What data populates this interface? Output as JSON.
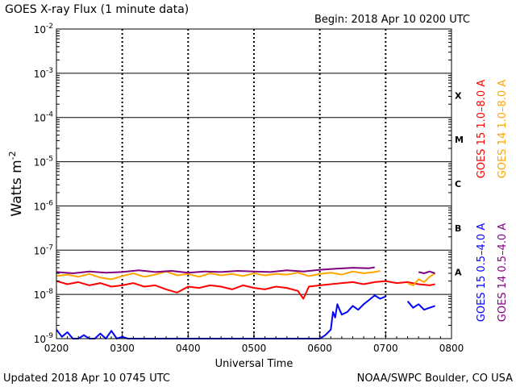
{
  "header": {
    "title": "GOES X-ray Flux (1 minute data)",
    "begin": "Begin: 2018 Apr 10 0200 UTC"
  },
  "footer": {
    "updated": "Updated 2018 Apr 10 0745 UTC",
    "credit": "NOAA/SWPC Boulder, CO USA"
  },
  "chart_data": {
    "type": "line",
    "xlabel": "Universal Time",
    "ylabel": "Watts m",
    "ylabel_superscript": "-2",
    "yscale": "log",
    "ylim": [
      1e-09,
      0.01
    ],
    "xlim": [
      "0200",
      "0800"
    ],
    "x_ticks": [
      "0200",
      "0300",
      "0400",
      "0500",
      "0600",
      "0700",
      "0800"
    ],
    "y_ticks": [
      {
        "value": 1e-09,
        "base": "10",
        "exp": "-9"
      },
      {
        "value": 1e-08,
        "base": "10",
        "exp": "-8"
      },
      {
        "value": 1e-07,
        "base": "10",
        "exp": "-7"
      },
      {
        "value": 1e-06,
        "base": "10",
        "exp": "-6"
      },
      {
        "value": 1e-05,
        "base": "10",
        "exp": "-5"
      },
      {
        "value": 0.0001,
        "base": "10",
        "exp": "-4"
      },
      {
        "value": 0.001,
        "base": "10",
        "exp": "-3"
      },
      {
        "value": 0.01,
        "base": "10",
        "exp": "-2"
      }
    ],
    "flare_classes": [
      {
        "label": "X",
        "value": 0.000316
      },
      {
        "label": "M",
        "value": 3.16e-05
      },
      {
        "label": "C",
        "value": 3.16e-06
      },
      {
        "label": "B",
        "value": 3.16e-07
      },
      {
        "label": "A",
        "value": 3.16e-08
      }
    ],
    "legend": [
      {
        "text": "GOES 15 1.0–8.0 A",
        "color": "#ff0000"
      },
      {
        "text": "GOES 14 1.0–8.0 A",
        "color": "#ffa500"
      },
      {
        "text": "GOES 15 0.5–4.0 A",
        "color": "#0000ff"
      },
      {
        "text": "GOES 14 0.5–4.0 A",
        "color": "#800080"
      }
    ],
    "series": [
      {
        "name": "GOES 15 1.0–8.0 A",
        "color": "#ff0000",
        "segments": [
          [
            [
              "02:00",
              2e-08
            ],
            [
              "02:10",
              1.7e-08
            ],
            [
              "02:20",
              1.9e-08
            ],
            [
              "02:30",
              1.6e-08
            ],
            [
              "02:40",
              1.8e-08
            ],
            [
              "02:50",
              1.5e-08
            ],
            [
              "03:00",
              1.6e-08
            ],
            [
              "03:10",
              1.8e-08
            ],
            [
              "03:20",
              1.5e-08
            ],
            [
              "03:30",
              1.6e-08
            ],
            [
              "03:40",
              1.3e-08
            ],
            [
              "03:50",
              1.1e-08
            ],
            [
              "04:00",
              1.5e-08
            ],
            [
              "04:10",
              1.4e-08
            ],
            [
              "04:20",
              1.6e-08
            ],
            [
              "04:30",
              1.5e-08
            ],
            [
              "04:40",
              1.3e-08
            ],
            [
              "04:50",
              1.6e-08
            ],
            [
              "05:00",
              1.4e-08
            ],
            [
              "05:10",
              1.3e-08
            ],
            [
              "05:20",
              1.5e-08
            ],
            [
              "05:30",
              1.4e-08
            ],
            [
              "05:40",
              1.2e-08
            ],
            [
              "05:45",
              8e-09
            ],
            [
              "05:50",
              1.5e-08
            ],
            [
              "06:00",
              1.6e-08
            ],
            [
              "06:10",
              1.7e-08
            ],
            [
              "06:20",
              1.8e-08
            ],
            [
              "06:30",
              1.9e-08
            ],
            [
              "06:40",
              1.7e-08
            ],
            [
              "06:50",
              1.9e-08
            ],
            [
              "07:00",
              2e-08
            ],
            [
              "07:10",
              1.8e-08
            ],
            [
              "07:20",
              1.9e-08
            ],
            [
              "07:30",
              1.7e-08
            ],
            [
              "07:40",
              1.6e-08
            ],
            [
              "07:45",
              1.7e-08
            ]
          ]
        ]
      },
      {
        "name": "GOES 14 1.0–8.0 A",
        "color": "#ffa500",
        "segments": [
          [
            [
              "02:00",
              2.6e-08
            ],
            [
              "02:10",
              2.8e-08
            ],
            [
              "02:20",
              2.5e-08
            ],
            [
              "02:30",
              2.9e-08
            ],
            [
              "02:40",
              2.4e-08
            ],
            [
              "02:50",
              2.2e-08
            ],
            [
              "03:00",
              2.6e-08
            ],
            [
              "03:10",
              3e-08
            ],
            [
              "03:20",
              2.5e-08
            ],
            [
              "03:30",
              2.8e-08
            ],
            [
              "03:40",
              3.3e-08
            ],
            [
              "03:50",
              2.7e-08
            ],
            [
              "04:00",
              2.9e-08
            ],
            [
              "04:10",
              2.5e-08
            ],
            [
              "04:20",
              3e-08
            ],
            [
              "04:30",
              2.7e-08
            ],
            [
              "04:40",
              2.9e-08
            ],
            [
              "04:50",
              2.6e-08
            ],
            [
              "05:00",
              3e-08
            ],
            [
              "05:10",
              2.7e-08
            ],
            [
              "05:20",
              2.9e-08
            ],
            [
              "05:30",
              2.8e-08
            ],
            [
              "05:40",
              3.1e-08
            ],
            [
              "05:50",
              2.6e-08
            ],
            [
              "06:00",
              2.9e-08
            ],
            [
              "06:10",
              3.1e-08
            ],
            [
              "06:20",
              2.8e-08
            ],
            [
              "06:30",
              3.3e-08
            ],
            [
              "06:40",
              3e-08
            ],
            [
              "06:50",
              3.2e-08
            ],
            [
              "06:55",
              3.4e-08
            ]
          ],
          [
            [
              "07:20",
              1.8e-08
            ],
            [
              "07:25",
              1.6e-08
            ],
            [
              "07:30",
              2.2e-08
            ],
            [
              "07:35",
              1.9e-08
            ],
            [
              "07:40",
              2.5e-08
            ],
            [
              "07:45",
              3e-08
            ]
          ]
        ]
      },
      {
        "name": "GOES 15 0.5–4.0 A",
        "color": "#0000ff",
        "segments": [
          [
            [
              "02:00",
              1.6e-09
            ],
            [
              "02:05",
              1.1e-09
            ],
            [
              "02:10",
              1.4e-09
            ],
            [
              "02:15",
              1e-09
            ],
            [
              "02:20",
              1e-09
            ],
            [
              "02:25",
              1.2e-09
            ],
            [
              "02:30",
              1e-09
            ],
            [
              "02:35",
              1e-09
            ],
            [
              "02:40",
              1.3e-09
            ],
            [
              "02:45",
              1e-09
            ],
            [
              "02:50",
              1.5e-09
            ],
            [
              "02:55",
              1e-09
            ],
            [
              "03:00",
              1.1e-09
            ],
            [
              "03:05",
              1e-09
            ],
            [
              "03:10",
              1e-09
            ],
            [
              "03:15",
              1e-09
            ],
            [
              "03:20",
              1e-09
            ],
            [
              "03:25",
              1e-09
            ],
            [
              "03:30",
              1e-09
            ],
            [
              "03:40",
              1e-09
            ],
            [
              "03:50",
              1e-09
            ],
            [
              "04:00",
              1e-09
            ],
            [
              "04:10",
              1e-09
            ],
            [
              "04:20",
              1e-09
            ],
            [
              "04:30",
              1e-09
            ],
            [
              "04:40",
              1e-09
            ],
            [
              "04:50",
              1e-09
            ],
            [
              "05:00",
              1e-09
            ],
            [
              "05:10",
              1e-09
            ],
            [
              "05:20",
              1e-09
            ],
            [
              "05:30",
              1e-09
            ],
            [
              "05:40",
              1e-09
            ],
            [
              "05:50",
              1e-09
            ],
            [
              "06:00",
              1e-09
            ],
            [
              "06:05",
              1.2e-09
            ],
            [
              "06:10",
              1.6e-09
            ],
            [
              "06:12",
              4e-09
            ],
            [
              "06:14",
              3e-09
            ],
            [
              "06:16",
              6e-09
            ],
            [
              "06:18",
              4.5e-09
            ],
            [
              "06:20",
              3.5e-09
            ],
            [
              "06:25",
              4e-09
            ],
            [
              "06:30",
              5.5e-09
            ],
            [
              "06:35",
              4.5e-09
            ],
            [
              "06:40",
              6e-09
            ],
            [
              "06:45",
              7.5e-09
            ],
            [
              "06:50",
              9.5e-09
            ],
            [
              "06:55",
              8e-09
            ],
            [
              "07:00",
              9e-09
            ]
          ],
          [
            [
              "07:20",
              7e-09
            ],
            [
              "07:25",
              5e-09
            ],
            [
              "07:30",
              6e-09
            ],
            [
              "07:35",
              4.5e-09
            ],
            [
              "07:40",
              5e-09
            ],
            [
              "07:45",
              5.5e-09
            ]
          ]
        ]
      },
      {
        "name": "GOES 14 0.5–4.0 A",
        "color": "#800080",
        "segments": [
          [
            [
              "02:00",
              3.2e-08
            ],
            [
              "02:15",
              3e-08
            ],
            [
              "02:30",
              3.3e-08
            ],
            [
              "02:45",
              3.1e-08
            ],
            [
              "03:00",
              3.2e-08
            ],
            [
              "03:15",
              3.5e-08
            ],
            [
              "03:30",
              3.2e-08
            ],
            [
              "03:45",
              3.4e-08
            ],
            [
              "04:00",
              3.1e-08
            ],
            [
              "04:15",
              3.3e-08
            ],
            [
              "04:30",
              3.2e-08
            ],
            [
              "04:45",
              3.4e-08
            ],
            [
              "05:00",
              3.3e-08
            ],
            [
              "05:15",
              3.2e-08
            ],
            [
              "05:30",
              3.5e-08
            ],
            [
              "05:45",
              3.3e-08
            ],
            [
              "06:00",
              3.6e-08
            ],
            [
              "06:15",
              3.8e-08
            ],
            [
              "06:30",
              4e-08
            ],
            [
              "06:45",
              3.9e-08
            ],
            [
              "06:50",
              4.1e-08
            ]
          ],
          [
            [
              "07:30",
              3.2e-08
            ],
            [
              "07:35",
              3e-08
            ],
            [
              "07:40",
              3.3e-08
            ],
            [
              "07:45",
              3e-08
            ]
          ]
        ]
      }
    ]
  }
}
